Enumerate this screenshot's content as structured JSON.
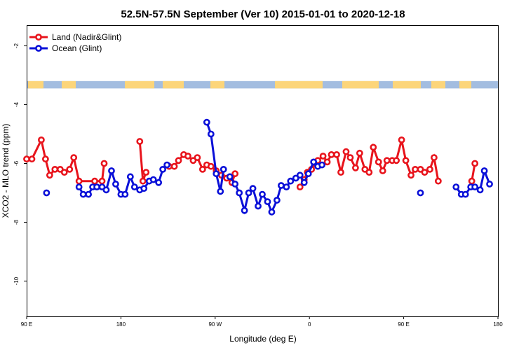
{
  "chart_data": {
    "type": "line",
    "title": "52.5N-57.5N September (Ver 10)   2015-01-01 to 2020-12-18",
    "xlabel": "Longitude (deg E)",
    "ylabel": "XCO2 - MLO trend (ppm)",
    "x_unwrapped_range": [
      90,
      540
    ],
    "ylim": [
      -11.2,
      -1.3
    ],
    "x_ticks": [
      {
        "value": 90,
        "label": "90 E"
      },
      {
        "value": 180,
        "label": "180"
      },
      {
        "value": 270,
        "label": "90 W"
      },
      {
        "value": 360,
        "label": "0"
      },
      {
        "value": 450,
        "label": "90 E"
      },
      {
        "value": 540,
        "label": "180"
      }
    ],
    "y_ticks": [
      {
        "value": -2,
        "label": "-2"
      },
      {
        "value": -4,
        "label": "-4"
      },
      {
        "value": -6,
        "label": "-6"
      },
      {
        "value": -8,
        "label": "-8"
      },
      {
        "value": -10,
        "label": "-10"
      }
    ],
    "legend": {
      "position": "top-left"
    },
    "land_mask_band": {
      "y_top": -3.2,
      "y_bottom": -3.45,
      "ocean_color": "#a3bde0",
      "land_color": "#fcd57a"
    },
    "series": [
      {
        "name": "Land (Nadir&Glint)",
        "color": "#e8141c",
        "points": [
          [
            90,
            -5.85
          ],
          [
            95,
            -5.85
          ],
          [
            104,
            -5.2
          ],
          [
            108,
            -5.85
          ],
          [
            112,
            -6.4
          ],
          [
            117,
            -6.2
          ],
          [
            122,
            -6.2
          ],
          [
            126,
            -6.3
          ],
          [
            131,
            -6.2
          ],
          [
            135,
            -5.8
          ],
          [
            140,
            -6.6
          ],
          [
            155,
            -6.6
          ],
          [
            162,
            -6.6
          ],
          [
            164,
            -6.0
          ],
          null,
          [
            198,
            -5.25
          ],
          [
            201,
            -6.6
          ],
          [
            204,
            -6.3
          ],
          null,
          [
            226,
            -6.1
          ],
          [
            231,
            -6.1
          ],
          [
            235,
            -5.9
          ],
          [
            240,
            -5.7
          ],
          [
            244,
            -5.75
          ],
          [
            249,
            -5.9
          ],
          [
            253,
            -5.8
          ],
          [
            258,
            -6.2
          ],
          [
            262,
            -6.05
          ],
          [
            266,
            -6.1
          ],
          [
            271,
            -6.25
          ],
          [
            276,
            -6.4
          ],
          [
            281,
            -6.5
          ],
          [
            286,
            -6.65
          ],
          [
            289,
            -6.35
          ],
          null,
          [
            351,
            -6.8
          ],
          [
            355,
            -6.55
          ],
          [
            358,
            -6.3
          ],
          [
            362,
            -6.2
          ],
          [
            365,
            -6.0
          ],
          [
            368,
            -5.9
          ],
          [
            373,
            -5.75
          ],
          [
            377,
            -5.95
          ],
          [
            381,
            -5.7
          ],
          [
            386,
            -5.7
          ],
          [
            390,
            -6.3
          ],
          [
            395,
            -5.6
          ],
          [
            399,
            -5.8
          ],
          [
            404,
            -6.15
          ],
          [
            408,
            -5.65
          ],
          [
            413,
            -6.2
          ],
          [
            417,
            -6.3
          ],
          [
            421,
            -5.45
          ],
          [
            426,
            -5.95
          ],
          [
            430,
            -6.25
          ],
          [
            434,
            -5.9
          ],
          [
            439,
            -5.9
          ],
          [
            443,
            -5.9
          ],
          [
            448,
            -5.2
          ],
          [
            452,
            -5.9
          ],
          [
            457,
            -6.4
          ],
          [
            461,
            -6.2
          ],
          [
            466,
            -6.2
          ],
          [
            470,
            -6.3
          ],
          [
            475,
            -6.2
          ],
          [
            479,
            -5.8
          ],
          [
            483,
            -6.6
          ],
          null,
          [
            515,
            -6.6
          ],
          [
            518,
            -6.0
          ]
        ]
      },
      {
        "name": "Ocean (Glint)",
        "color": "#0a10d8",
        "points": [
          [
            109,
            -7.0
          ],
          null,
          [
            140,
            -6.8
          ],
          [
            144,
            -7.05
          ],
          [
            149,
            -7.05
          ],
          [
            153,
            -6.8
          ],
          [
            157,
            -6.8
          ],
          [
            162,
            -6.8
          ],
          [
            166,
            -6.9
          ],
          [
            171,
            -6.25
          ],
          [
            175,
            -6.7
          ],
          [
            180,
            -7.05
          ],
          [
            184,
            -7.05
          ],
          [
            189,
            -6.45
          ],
          [
            193,
            -6.8
          ],
          [
            198,
            -6.9
          ],
          [
            202,
            -6.85
          ],
          [
            207,
            -6.6
          ],
          [
            211,
            -6.55
          ],
          [
            216,
            -6.65
          ],
          [
            220,
            -6.2
          ],
          [
            224,
            -6.05
          ],
          null,
          [
            262,
            -4.6
          ],
          [
            266,
            -5.0
          ],
          [
            271,
            -6.35
          ],
          [
            275,
            -6.95
          ],
          [
            278,
            -6.2
          ],
          null,
          [
            284,
            -6.45
          ],
          [
            289,
            -6.7
          ],
          [
            293,
            -7.0
          ],
          [
            298,
            -7.6
          ],
          [
            302,
            -7.0
          ],
          [
            306,
            -6.85
          ],
          [
            311,
            -7.45
          ],
          [
            315,
            -7.05
          ],
          [
            320,
            -7.3
          ],
          [
            324,
            -7.65
          ],
          [
            329,
            -7.25
          ],
          [
            333,
            -6.75
          ],
          [
            338,
            -6.8
          ],
          [
            342,
            -6.6
          ],
          [
            347,
            -6.5
          ],
          [
            351,
            -6.4
          ],
          [
            355,
            -6.65
          ],
          [
            359,
            -6.35
          ],
          [
            364,
            -5.95
          ],
          [
            368,
            -6.1
          ],
          [
            372,
            -6.05
          ],
          null,
          [
            466,
            -7.0
          ],
          null,
          [
            500,
            -6.8
          ],
          [
            505,
            -7.05
          ],
          [
            509,
            -7.05
          ],
          [
            514,
            -6.8
          ],
          [
            518,
            -6.8
          ],
          [
            523,
            -6.9
          ],
          [
            527,
            -6.25
          ],
          [
            532,
            -6.7
          ]
        ]
      }
    ]
  }
}
